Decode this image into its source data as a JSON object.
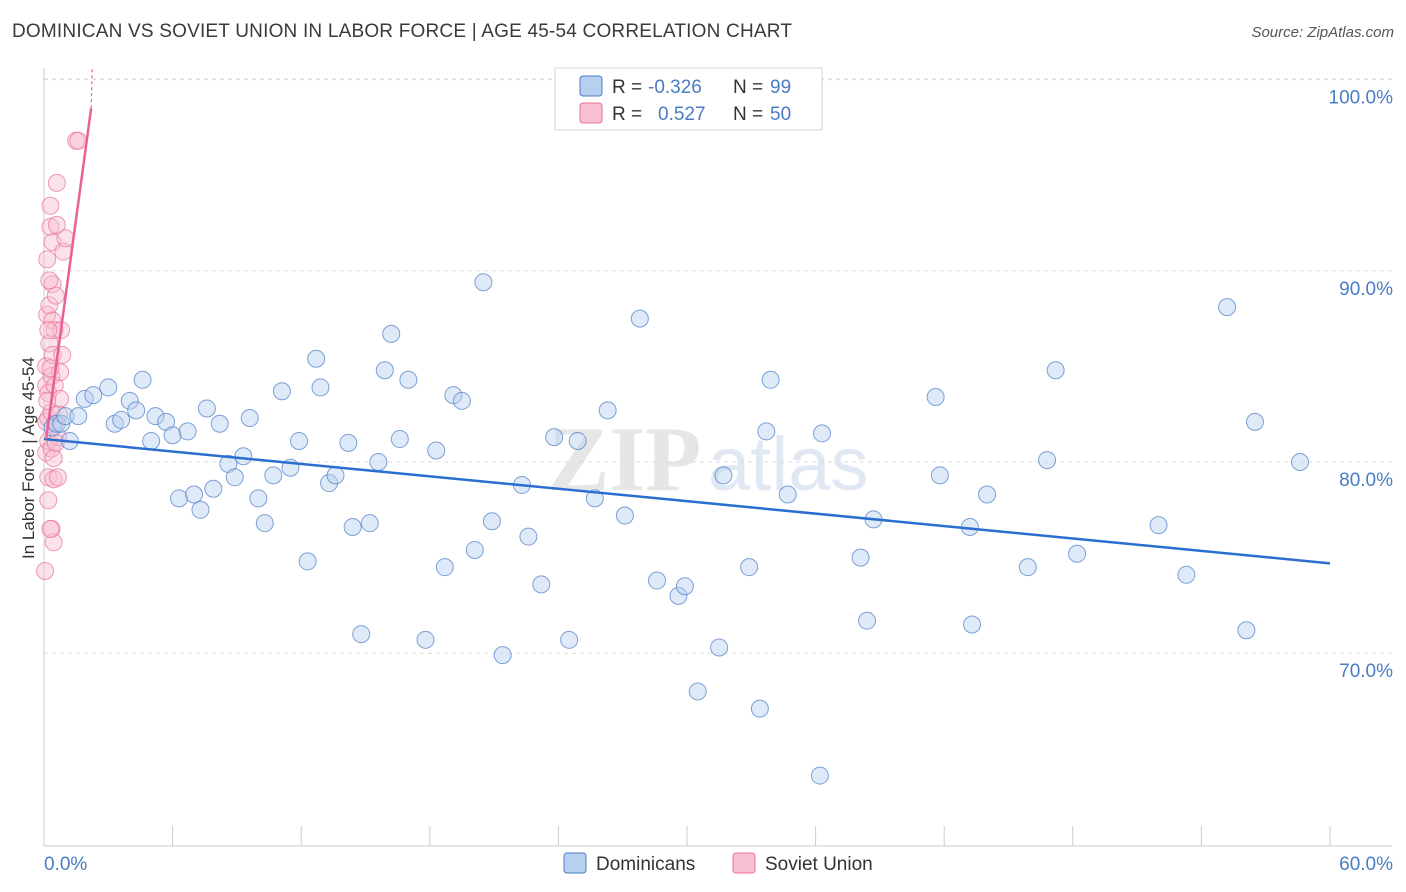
{
  "title": "DOMINICAN VS SOVIET UNION IN LABOR FORCE | AGE 45-54 CORRELATION CHART",
  "source": "Source: ZipAtlas.com",
  "watermark": {
    "zip": "ZIP",
    "atlas": "atlas"
  },
  "colors": {
    "blue": "#4a7cc4",
    "blue_fill": "#b8d0f0",
    "blue_line": "#2a6fd0",
    "pink": "#e8709a",
    "pink_fill": "#f7bfd0",
    "pink_line": "#e8609a",
    "grid": "#dcdcdc"
  },
  "legend": {
    "rows": [
      {
        "r_label": "R =",
        "r_value": "-0.326",
        "n_label": "N =",
        "n_value": "99",
        "series": "Dominicans"
      },
      {
        "r_label": "R =",
        "r_value": "0.527",
        "n_label": "N =",
        "n_value": "50",
        "series": "Soviet Union"
      }
    ]
  },
  "chart_data": {
    "type": "scatter",
    "title": "DOMINICAN VS SOVIET UNION IN LABOR FORCE | AGE 45-54 CORRELATION CHART",
    "xlabel": "",
    "ylabel": "In Labor Force | Age 45-54",
    "xlim": [
      0,
      60
    ],
    "ylim": [
      62,
      103
    ],
    "x_tick_labels": [
      "0.0%",
      "60.0%"
    ],
    "y_ticks": [
      70,
      80,
      90,
      100
    ],
    "y_tick_labels": [
      "70.0%",
      "80.0%",
      "90.0%",
      "100.0%"
    ],
    "grid": "horizontal dashed",
    "legend_position": "top-center",
    "series": [
      {
        "name": "Dominicans",
        "color": "#4a7cc4",
        "trend": {
          "x": [
            0,
            60
          ],
          "y": [
            81.2,
            74.7
          ]
        },
        "points": [
          [
            0.4,
            81.8
          ],
          [
            0.6,
            82.0
          ],
          [
            0.8,
            82.0
          ],
          [
            1.0,
            82.4
          ],
          [
            1.2,
            81.1
          ],
          [
            1.6,
            82.4
          ],
          [
            1.9,
            83.3
          ],
          [
            2.3,
            83.5
          ],
          [
            3.0,
            83.9
          ],
          [
            3.3,
            82.0
          ],
          [
            3.6,
            82.2
          ],
          [
            4.0,
            83.2
          ],
          [
            4.3,
            82.7
          ],
          [
            4.6,
            84.3
          ],
          [
            5.0,
            81.1
          ],
          [
            5.2,
            82.4
          ],
          [
            5.7,
            82.1
          ],
          [
            6.0,
            81.4
          ],
          [
            6.3,
            78.1
          ],
          [
            6.7,
            81.6
          ],
          [
            7.0,
            78.3
          ],
          [
            7.3,
            77.5
          ],
          [
            7.6,
            82.8
          ],
          [
            7.9,
            78.6
          ],
          [
            8.2,
            82.0
          ],
          [
            8.6,
            79.9
          ],
          [
            8.9,
            79.2
          ],
          [
            9.3,
            80.3
          ],
          [
            9.6,
            82.3
          ],
          [
            10.0,
            78.1
          ],
          [
            10.3,
            76.8
          ],
          [
            10.7,
            79.3
          ],
          [
            11.1,
            83.7
          ],
          [
            11.5,
            79.7
          ],
          [
            11.9,
            81.1
          ],
          [
            12.3,
            74.8
          ],
          [
            12.7,
            85.4
          ],
          [
            12.9,
            83.9
          ],
          [
            13.3,
            78.9
          ],
          [
            13.6,
            79.3
          ],
          [
            14.2,
            81.0
          ],
          [
            14.4,
            76.6
          ],
          [
            14.8,
            71.0
          ],
          [
            15.2,
            76.8
          ],
          [
            15.6,
            80.0
          ],
          [
            15.9,
            84.8
          ],
          [
            16.2,
            86.7
          ],
          [
            16.6,
            81.2
          ],
          [
            17.0,
            84.3
          ],
          [
            17.8,
            70.7
          ],
          [
            18.3,
            80.6
          ],
          [
            18.7,
            74.5
          ],
          [
            19.1,
            83.5
          ],
          [
            19.5,
            83.2
          ],
          [
            20.1,
            75.4
          ],
          [
            20.5,
            89.4
          ],
          [
            20.9,
            76.9
          ],
          [
            21.4,
            69.9
          ],
          [
            22.3,
            78.8
          ],
          [
            22.6,
            76.1
          ],
          [
            23.2,
            73.6
          ],
          [
            23.8,
            81.3
          ],
          [
            24.5,
            70.7
          ],
          [
            24.9,
            81.1
          ],
          [
            25.7,
            78.1
          ],
          [
            26.3,
            82.7
          ],
          [
            27.1,
            77.2
          ],
          [
            27.8,
            87.5
          ],
          [
            28.6,
            73.8
          ],
          [
            29.6,
            73.0
          ],
          [
            29.9,
            73.5
          ],
          [
            30.5,
            68.0
          ],
          [
            31.5,
            70.3
          ],
          [
            31.7,
            79.3
          ],
          [
            32.9,
            74.5
          ],
          [
            33.4,
            67.1
          ],
          [
            33.7,
            81.6
          ],
          [
            33.9,
            84.3
          ],
          [
            34.7,
            78.3
          ],
          [
            36.2,
            63.6
          ],
          [
            36.3,
            81.5
          ],
          [
            38.1,
            75.0
          ],
          [
            38.4,
            71.7
          ],
          [
            38.7,
            77.0
          ],
          [
            41.6,
            83.4
          ],
          [
            41.8,
            79.3
          ],
          [
            43.2,
            76.6
          ],
          [
            43.3,
            71.5
          ],
          [
            44.0,
            78.3
          ],
          [
            45.9,
            74.5
          ],
          [
            46.8,
            80.1
          ],
          [
            47.2,
            84.8
          ],
          [
            48.2,
            75.2
          ],
          [
            52.0,
            76.7
          ],
          [
            53.3,
            74.1
          ],
          [
            55.2,
            88.1
          ],
          [
            56.1,
            71.2
          ],
          [
            56.5,
            82.1
          ],
          [
            61.3,
            80.0
          ]
        ]
      },
      {
        "name": "Soviet Union",
        "color": "#e8709a",
        "trend": {
          "x": [
            0.1,
            2.2
          ],
          "y": [
            81.2,
            98.5
          ]
        },
        "points": [
          [
            0.05,
            74.3
          ],
          [
            0.1,
            80.5
          ],
          [
            0.1,
            82.1
          ],
          [
            0.1,
            84.0
          ],
          [
            0.1,
            85.0
          ],
          [
            0.15,
            87.7
          ],
          [
            0.15,
            90.6
          ],
          [
            0.2,
            78.0
          ],
          [
            0.2,
            79.2
          ],
          [
            0.2,
            81.1
          ],
          [
            0.2,
            82.3
          ],
          [
            0.2,
            83.6
          ],
          [
            0.25,
            86.2
          ],
          [
            0.25,
            88.2
          ],
          [
            0.3,
            92.3
          ],
          [
            0.3,
            93.4
          ],
          [
            0.35,
            76.5
          ],
          [
            0.35,
            80.7
          ],
          [
            0.35,
            82.6
          ],
          [
            0.35,
            84.5
          ],
          [
            0.4,
            85.6
          ],
          [
            0.4,
            87.4
          ],
          [
            0.4,
            89.3
          ],
          [
            0.4,
            91.5
          ],
          [
            0.45,
            75.8
          ],
          [
            0.45,
            79.1
          ],
          [
            0.45,
            80.2
          ],
          [
            0.5,
            82.0
          ],
          [
            0.5,
            84.0
          ],
          [
            0.5,
            86.9
          ],
          [
            0.55,
            88.7
          ],
          [
            0.6,
            92.4
          ],
          [
            0.6,
            94.6
          ],
          [
            0.65,
            79.2
          ],
          [
            0.65,
            81.3
          ],
          [
            0.7,
            82.5
          ],
          [
            0.75,
            83.3
          ],
          [
            0.75,
            84.7
          ],
          [
            0.8,
            86.9
          ],
          [
            0.85,
            85.6
          ],
          [
            0.9,
            91.0
          ],
          [
            1.0,
            91.7
          ],
          [
            1.5,
            96.8
          ],
          [
            1.6,
            96.8
          ],
          [
            0.3,
            76.5
          ],
          [
            0.3,
            84.9
          ],
          [
            0.2,
            86.9
          ],
          [
            0.25,
            89.5
          ],
          [
            0.55,
            81.0
          ],
          [
            0.15,
            83.2
          ]
        ]
      }
    ]
  }
}
